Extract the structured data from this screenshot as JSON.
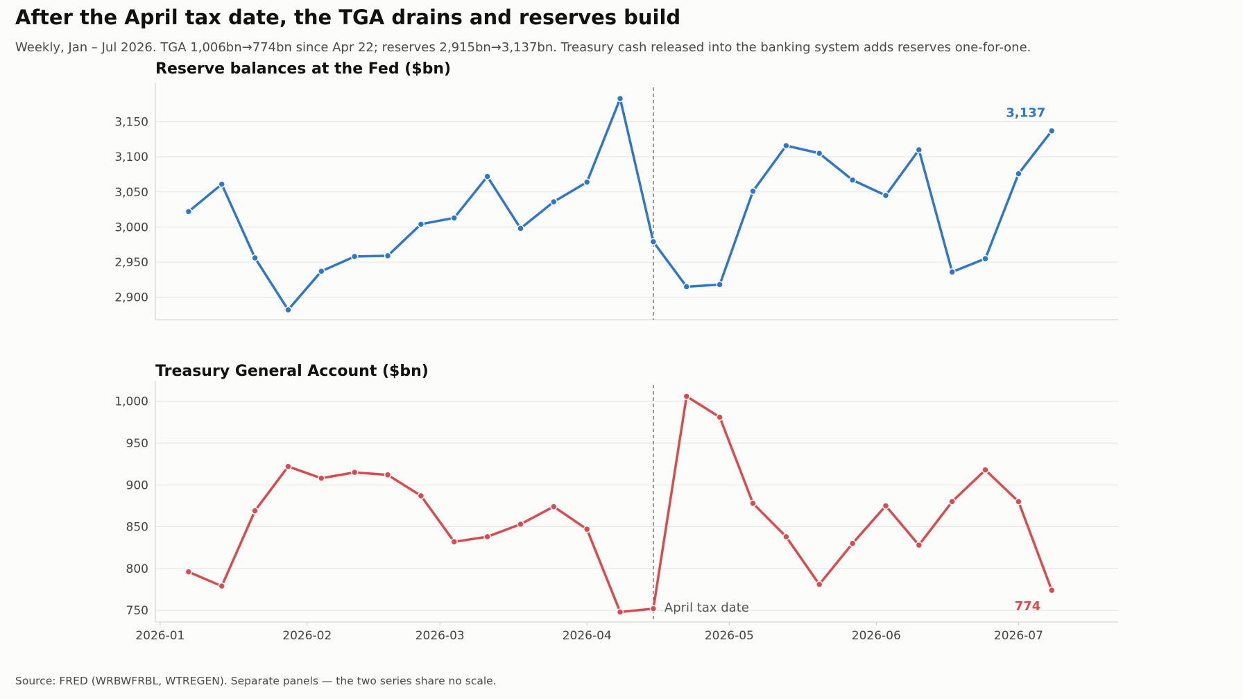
{
  "header": {
    "title": "After the April tax date, the TGA drains and reserves build",
    "subtitle": "Weekly, Jan – Jul 2026. TGA 1,006bn→774bn since Apr 22; reserves 2,915bn→3,137bn. Treasury cash released into the banking system adds reserves one-for-one."
  },
  "footer": {
    "source": "Source: FRED (WRBWFRBL, WTREGEN). Separate panels — the two series share no scale."
  },
  "colors": {
    "reserves": "#2e77d0",
    "tga": "#dc4a4d",
    "grid": "#e3e3e3",
    "axis": "#cccccc",
    "marker_line": "#777777"
  },
  "chart_data": [
    {
      "type": "line",
      "title": "Reserve balances at the Fed  ($bn)",
      "series": [
        {
          "x": [
            "2026-01-07",
            "2026-01-14",
            "2026-01-21",
            "2026-01-28",
            "2026-02-04",
            "2026-02-11",
            "2026-02-18",
            "2026-02-25",
            "2026-03-04",
            "2026-03-11",
            "2026-03-18",
            "2026-03-25",
            "2026-04-01",
            "2026-04-08",
            "2026-04-15",
            "2026-04-22",
            "2026-04-29",
            "2026-05-06",
            "2026-05-13",
            "2026-05-20",
            "2026-05-27",
            "2026-06-03",
            "2026-06-10",
            "2026-06-17",
            "2026-06-24",
            "2026-07-01",
            "2026-07-08"
          ],
          "values": [
            3022,
            3061,
            2956,
            2882,
            2937,
            2958,
            2959,
            3004,
            3013,
            3072,
            2998,
            3036,
            3064,
            3183,
            2979,
            2915,
            2918,
            3051,
            3116,
            3105,
            3067,
            3045,
            3110,
            2936,
            2955,
            3076,
            3137
          ]
        }
      ],
      "yticks": [
        2900,
        2950,
        3000,
        3050,
        3100,
        3150
      ],
      "ylim": [
        2868,
        3197
      ],
      "end_label": "3,137",
      "grid": true
    },
    {
      "type": "line",
      "title": "Treasury General Account  ($bn)",
      "series": [
        {
          "x": [
            "2026-01-07",
            "2026-01-14",
            "2026-01-21",
            "2026-01-28",
            "2026-02-04",
            "2026-02-11",
            "2026-02-18",
            "2026-02-25",
            "2026-03-04",
            "2026-03-11",
            "2026-03-18",
            "2026-03-25",
            "2026-04-01",
            "2026-04-08",
            "2026-04-15",
            "2026-04-22",
            "2026-04-29",
            "2026-05-06",
            "2026-05-13",
            "2026-05-20",
            "2026-05-27",
            "2026-06-03",
            "2026-06-10",
            "2026-06-17",
            "2026-06-24",
            "2026-07-01",
            "2026-07-08"
          ],
          "values": [
            796,
            779,
            869,
            922,
            908,
            915,
            912,
            887,
            832,
            838,
            853,
            874,
            847,
            748,
            752,
            1006,
            981,
            878,
            838,
            781,
            830,
            875,
            828,
            880,
            918,
            880,
            774
          ]
        }
      ],
      "yticks": [
        750,
        800,
        850,
        900,
        950,
        1000
      ],
      "ylim": [
        736,
        1018
      ],
      "end_label": "774",
      "annotation": "April tax date",
      "grid": true
    }
  ],
  "x_axis": {
    "ticks": [
      "2026-01",
      "2026-02",
      "2026-03",
      "2026-04",
      "2026-05",
      "2026-06",
      "2026-07"
    ],
    "xlim": [
      "2025-12-31",
      "2026-07-22"
    ],
    "marker_date": "2026-04-15"
  }
}
